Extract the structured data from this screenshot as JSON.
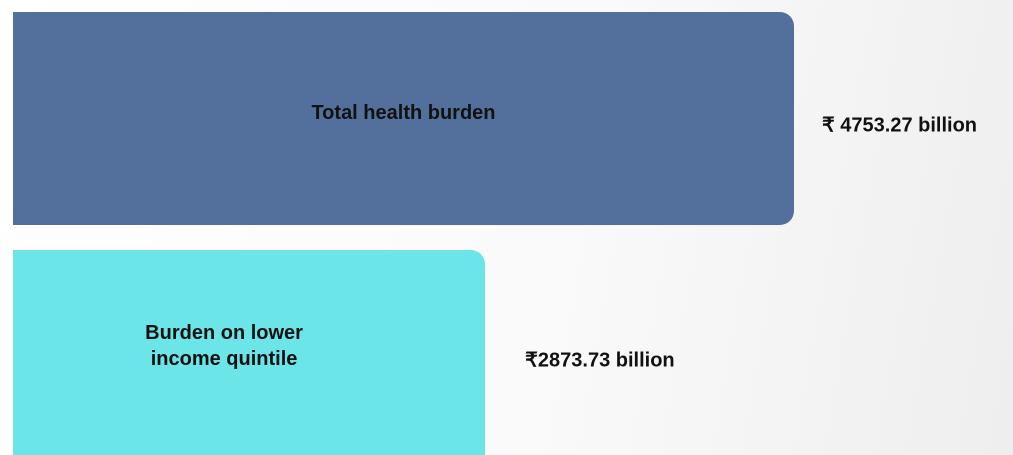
{
  "chart_data": {
    "type": "bar",
    "orientation": "horizontal",
    "categories": [
      "Total health burden",
      "Burden on lower income quintile"
    ],
    "values": [
      4753.27,
      2873.73
    ],
    "value_labels": [
      "₹ 4753.27 billion",
      "₹2873.73 billion"
    ],
    "colors": [
      "#52709b",
      "#6ce5e8"
    ]
  }
}
